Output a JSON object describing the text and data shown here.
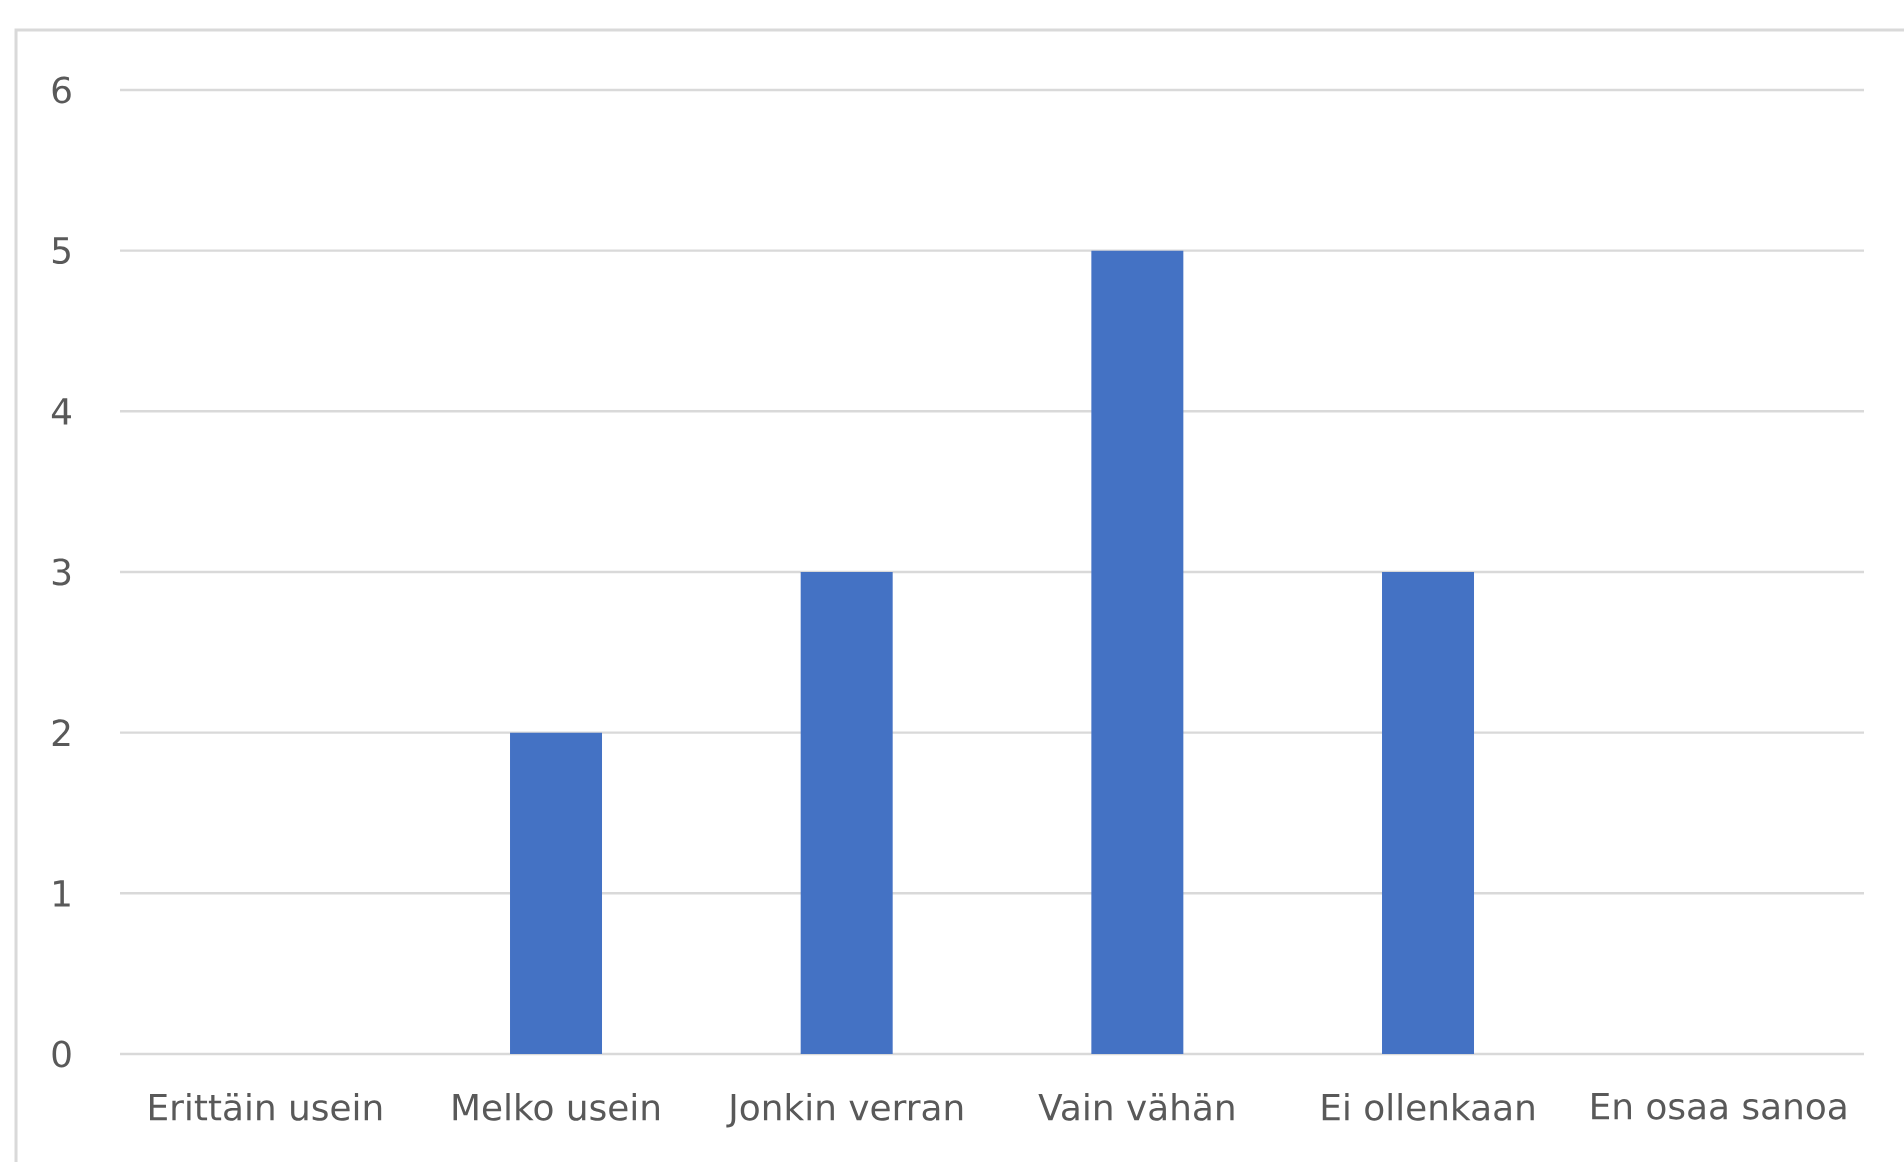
{
  "chart_data": {
    "type": "bar",
    "categories": [
      "Erittäin usein",
      "Melko usein",
      "Jonkin verran",
      "Vain vähän",
      "Ei ollenkaan",
      "En osaa sanoa"
    ],
    "values": [
      0,
      2,
      3,
      5,
      3,
      0
    ],
    "color": "#4472c4",
    "ylim": [
      0,
      6
    ],
    "yticks": [
      0,
      1,
      2,
      3,
      4,
      5,
      6
    ],
    "grid": "y"
  }
}
